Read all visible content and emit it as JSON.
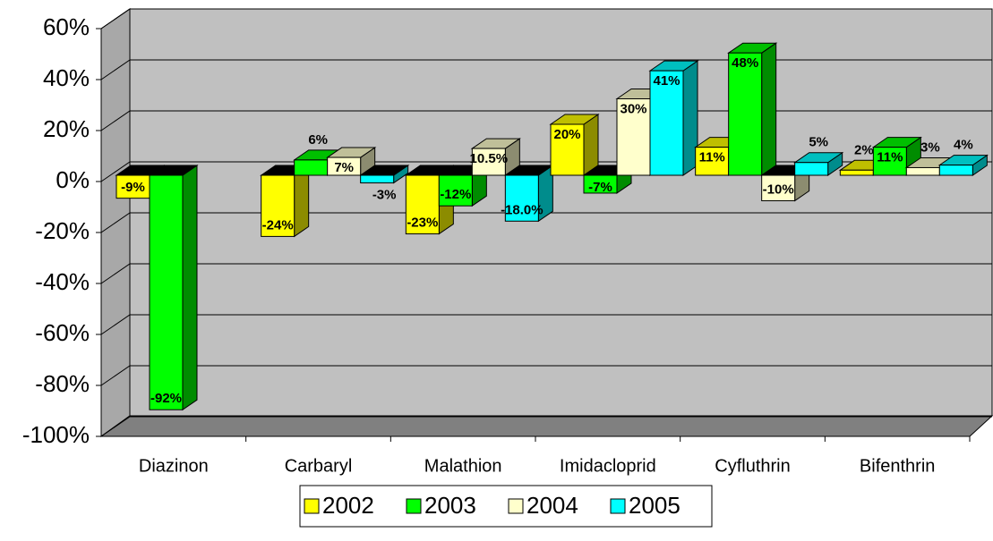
{
  "chart_data": {
    "type": "bar3d",
    "categories": [
      "Diazinon",
      "Carbaryl",
      "Malathion",
      "Imidacloprid",
      "Cyfluthrin",
      "Bifenthrin"
    ],
    "series": [
      {
        "name": "2002",
        "color": "#ffff00",
        "values": [
          -9,
          -24,
          -23,
          20,
          11,
          2
        ],
        "value_labels": [
          "-9%",
          "-24%",
          "-23%",
          "20%",
          "11%",
          "2%"
        ]
      },
      {
        "name": "2003",
        "color": "#00ff00",
        "values": [
          -92,
          6,
          -12,
          -7,
          48,
          11
        ],
        "value_labels": [
          "-92%",
          "6%",
          "-12%",
          "-7%",
          "48%",
          "11%"
        ]
      },
      {
        "name": "2004",
        "color": "#ffffcc",
        "values": [
          null,
          7,
          10.5,
          30,
          -10,
          3
        ],
        "value_labels": [
          null,
          "7%",
          "10.5%",
          "30%",
          "-10%",
          "3%"
        ]
      },
      {
        "name": "2005",
        "color": "#00ffff",
        "values": [
          null,
          -3,
          -18.0,
          41,
          5,
          4
        ],
        "value_labels": [
          null,
          "-3%",
          "-18.0%",
          "41%",
          "5%",
          "4%"
        ]
      }
    ],
    "ylim": [
      -100,
      60
    ],
    "yticks": [
      {
        "value": -100,
        "label": "-100%"
      },
      {
        "value": -80,
        "label": "-80%"
      },
      {
        "value": -60,
        "label": "-60%"
      },
      {
        "value": -40,
        "label": "-40%"
      },
      {
        "value": -20,
        "label": "-20%"
      },
      {
        "value": 0,
        "label": "0%"
      },
      {
        "value": 20,
        "label": "20%"
      },
      {
        "value": 40,
        "label": "40%"
      },
      {
        "value": 60,
        "label": "60%"
      }
    ],
    "grid": true,
    "legend": "bottom"
  }
}
